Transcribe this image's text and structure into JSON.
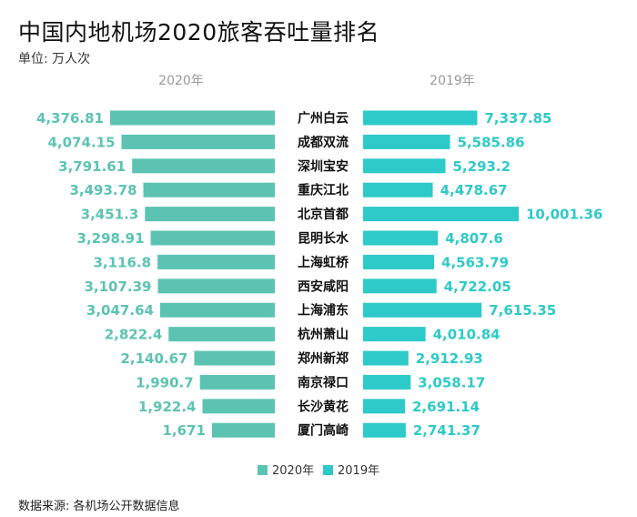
{
  "title": "中国内地机场2020旅客吞吐量排名",
  "unit": "单位: 万人次",
  "source": "数据来源: 各机场公开数据信息",
  "colors": {
    "y2020": "#5cc3b3",
    "y2019": "#2ec9c9"
  },
  "chart_data": {
    "type": "bar",
    "orientation": "horizontal-butterfly",
    "categories": [
      "广州白云",
      "成都双流",
      "深圳宝安",
      "重庆江北",
      "北京首都",
      "昆明长水",
      "上海虹桥",
      "西安咸阳",
      "上海浦东",
      "杭州萧山",
      "郑州新郑",
      "南京禄口",
      "长沙黄花",
      "厦门高崎"
    ],
    "series": [
      {
        "name": "2020年",
        "side": "left",
        "values": [
          4376.81,
          4074.15,
          3791.61,
          3493.78,
          3451.3,
          3298.91,
          3116.8,
          3107.39,
          3047.64,
          2822.4,
          2140.67,
          1990.7,
          1922.4,
          1671
        ],
        "labels": [
          "4,376.81",
          "4,074.15",
          "3,791.61",
          "3,493.78",
          "3,451.3",
          "3,298.91",
          "3,116.8",
          "3,107.39",
          "3,047.64",
          "2,822.4",
          "2,140.67",
          "1,990.7",
          "1,922.4",
          "1,671"
        ]
      },
      {
        "name": "2019年",
        "side": "right",
        "values": [
          7337.85,
          5585.86,
          5293.2,
          4478.67,
          10001.36,
          4807.6,
          4563.79,
          4722.05,
          7615.35,
          4010.84,
          2912.93,
          3058.17,
          2691.14,
          2741.37
        ],
        "labels": [
          "7,337.85",
          "5,585.86",
          "5,293.2",
          "4,478.67",
          "10,001.36",
          "4,807.6",
          "4,563.79",
          "4,722.05",
          "7,615.35",
          "4,010.84",
          "2,912.93",
          "3,058.17",
          "2,691.14",
          "2,741.37"
        ]
      }
    ],
    "legend_position": "bottom-center"
  }
}
